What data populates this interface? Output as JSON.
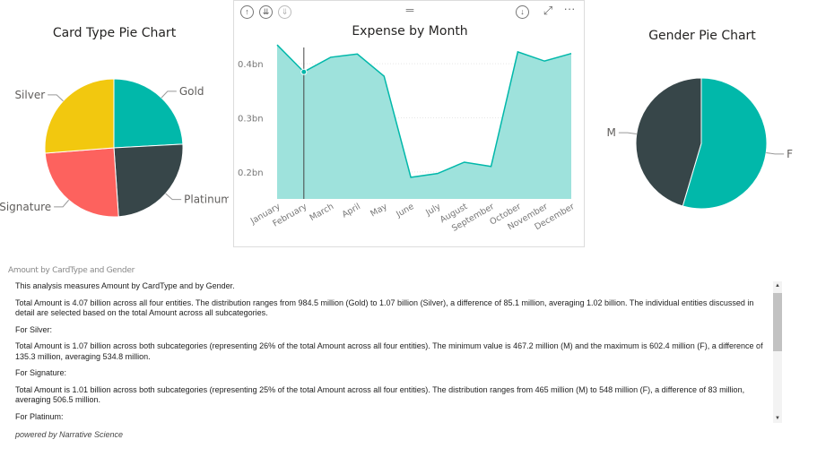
{
  "card_pie": {
    "title": "Card Type Pie Chart",
    "icon_names": []
  },
  "expense_chart": {
    "title": "Expense by Month",
    "toolbar": {
      "drill_up_icon": "drill-up-icon",
      "drill_down_all_icon": "expand-all-icon",
      "drill_mode_icon": "drill-mode-icon",
      "drag_handle_icon": "drag-handle-icon",
      "drill_down_icon": "drill-down-icon",
      "focus_mode_icon": "focus-mode-icon",
      "more_options_icon": "more-options-icon"
    },
    "y_tick_labels": [
      "0.4bn",
      "0.3bn",
      "0.2bn"
    ]
  },
  "gender_pie": {
    "title": "Gender Pie Chart"
  },
  "narrative": {
    "caption": "Amount by CardType and Gender",
    "paragraphs": [
      "This analysis measures Amount by CardType and by Gender.",
      "Total Amount is 4.07 billion across all four entities. The distribution ranges from 984.5 million (Gold) to 1.07 billion (Silver), a difference of 85.1 million, averaging 1.02 billion. The individual entities discussed in detail are selected based on the total Amount across all subcategories.",
      "For Silver:",
      "Total Amount is 1.07 billion across both subcategories (representing 26% of the total Amount across all four entities). The minimum value is 467.2 million (M) and the maximum is 602.4 million (F), a difference of 135.3 million, averaging 534.8 million.",
      "For Signature:",
      "Total Amount is 1.01 billion across both subcategories (representing 25% of the total Amount across all four entities). The distribution ranges from 465 million (M) to 548 million (F), a difference of 83 million, averaging 506.5 million.",
      "For Platinum:"
    ],
    "powered_by": "powered by Narrative Science"
  },
  "colors": {
    "teal": "#01B8AA",
    "dark": "#374649",
    "red": "#FD625E",
    "yellow": "#F2C80F",
    "area_fill": "#9EE2DC"
  },
  "chart_data": [
    {
      "type": "pie",
      "title": "Card Type Pie Chart",
      "labels": [
        "Gold",
        "Platinum",
        "Signature",
        "Silver"
      ],
      "values": [
        984.5,
        1010,
        1013,
        1069.6
      ],
      "colors": [
        "#01B8AA",
        "#374649",
        "#FD625E",
        "#F2C80F"
      ],
      "label_side": [
        "right",
        "right",
        "left",
        "left"
      ],
      "legend": "none"
    },
    {
      "type": "area",
      "title": "Expense by Month",
      "categories": [
        "January",
        "February",
        "March",
        "April",
        "May",
        "June",
        "July",
        "August",
        "September",
        "October",
        "November",
        "December"
      ],
      "series": [
        {
          "values": [
            0.435,
            0.385,
            0.412,
            0.418,
            0.377,
            0.19,
            0.197,
            0.218,
            0.21,
            0.422,
            0.405,
            0.419
          ]
        }
      ],
      "ylim": [
        0.15,
        0.45
      ],
      "y_ticks": [
        0.4,
        0.3,
        0.2
      ],
      "y_tick_labels": [
        "0.4bn",
        "0.3bn",
        "0.2bn"
      ],
      "hover_category": "February",
      "grid": true,
      "legend": "none"
    },
    {
      "type": "pie",
      "title": "Gender Pie Chart",
      "labels": [
        "F",
        "M"
      ],
      "values": [
        2224,
        1850
      ],
      "colors": [
        "#01B8AA",
        "#374649"
      ],
      "label_side": [
        "right",
        "left"
      ],
      "legend": "none"
    }
  ]
}
